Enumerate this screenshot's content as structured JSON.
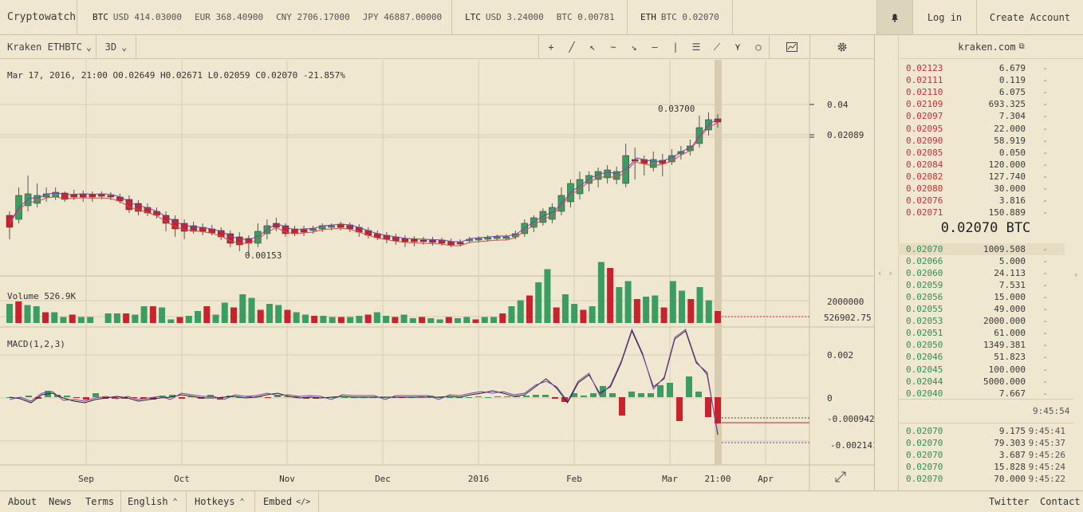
{
  "colors": {
    "bg": "#f0e7d1",
    "up": "#3a9e63",
    "down": "#c8232c",
    "grid": "#d6ccb2",
    "ma": "#d24a4a",
    "macd_signal": "#7a3fb0",
    "macd_line": "#222222"
  },
  "topbar": {
    "brand": "Cryptowatch",
    "btc_label": "BTC",
    "btc_prices": [
      "USD 414.03000",
      "EUR 368.40900",
      "CNY 2706.17000",
      "JPY 46887.00000"
    ],
    "ltc_label": "LTC",
    "ltc_prices": [
      "USD 3.24000",
      "BTC 0.00781"
    ],
    "eth_label": "ETH",
    "eth_prices": [
      "BTC 0.02070"
    ],
    "theme_icon": "bell-icon",
    "login": "Log in",
    "create_account": "Create Account"
  },
  "toolbar": {
    "market": "Kraken ETHBTC",
    "period": "3D",
    "tools": [
      "crosshair-icon",
      "line-icon",
      "arrow-icon",
      "curve-icon",
      "ray-icon",
      "hline-icon",
      "vline-icon",
      "fib-icon",
      "pitchfork-icon",
      "fan-icon",
      "circle-icon"
    ],
    "chart_icon": "chart-icon",
    "settings_icon": "gear-icon"
  },
  "info_line": {
    "date": "Mar 17, 2016, 21:00",
    "o": "O0.02649",
    "h": "H0.02671",
    "l": "L0.02059",
    "c": "C0.02070",
    "change": "-21.857%"
  },
  "annotations": {
    "high": "0.03700",
    "low": "0.00153"
  },
  "price_axis": {
    "ticks": [
      "0.04",
      "0.02089"
    ]
  },
  "volume": {
    "label": "Volume 526.9K",
    "ticks": [
      "2000000",
      "526902.75"
    ]
  },
  "macd": {
    "label": "MACD(1,2,3)",
    "ticks": [
      "0.002",
      "0",
      "-0.000942",
      "-0.002141"
    ]
  },
  "x_axis": {
    "labels": [
      "Sep",
      "Oct",
      "Nov",
      "Dec",
      "2016",
      "Feb",
      "Mar",
      "21:00",
      "Apr"
    ]
  },
  "orderbook": {
    "exchange": "kraken.com",
    "asks": [
      {
        "price": "0.02123",
        "qty": "6.679",
        "d": "-"
      },
      {
        "price": "0.02111",
        "qty": "0.119",
        "d": "-"
      },
      {
        "price": "0.02110",
        "qty": "6.075",
        "d": "-"
      },
      {
        "price": "0.02109",
        "qty": "693.325",
        "d": "-"
      },
      {
        "price": "0.02097",
        "qty": "7.304",
        "d": "-"
      },
      {
        "price": "0.02095",
        "qty": "22.000",
        "d": "-"
      },
      {
        "price": "0.02090",
        "qty": "58.919",
        "d": "-"
      },
      {
        "price": "0.02085",
        "qty": "0.050",
        "d": "-"
      },
      {
        "price": "0.02084",
        "qty": "120.000",
        "d": "-"
      },
      {
        "price": "0.02082",
        "qty": "127.740",
        "d": "-"
      },
      {
        "price": "0.02080",
        "qty": "30.000",
        "d": "-"
      },
      {
        "price": "0.02076",
        "qty": "3.816",
        "d": "-"
      },
      {
        "price": "0.02071",
        "qty": "150.889",
        "d": "-"
      }
    ],
    "last_price": "0.02070 BTC",
    "bids": [
      {
        "price": "0.02070",
        "qty": "1009.508",
        "d": "-"
      },
      {
        "price": "0.02066",
        "qty": "5.000",
        "d": "-"
      },
      {
        "price": "0.02060",
        "qty": "24.113",
        "d": "-"
      },
      {
        "price": "0.02059",
        "qty": "7.531",
        "d": "-"
      },
      {
        "price": "0.02056",
        "qty": "15.000",
        "d": "-"
      },
      {
        "price": "0.02055",
        "qty": "49.000",
        "d": "-"
      },
      {
        "price": "0.02053",
        "qty": "2000.000",
        "d": "-"
      },
      {
        "price": "0.02051",
        "qty": "61.000",
        "d": "-"
      },
      {
        "price": "0.02050",
        "qty": "1349.381",
        "d": "-"
      },
      {
        "price": "0.02046",
        "qty": "51.823",
        "d": "-"
      },
      {
        "price": "0.02045",
        "qty": "100.000",
        "d": "-"
      },
      {
        "price": "0.02044",
        "qty": "5000.000",
        "d": "-"
      },
      {
        "price": "0.02040",
        "qty": "7.667",
        "d": "-"
      }
    ],
    "clock": "9:45:54",
    "trades": [
      {
        "price": "0.02070",
        "qty": "9.175",
        "time": "9:45:41"
      },
      {
        "price": "0.02070",
        "qty": "79.303",
        "time": "9:45:37"
      },
      {
        "price": "0.02070",
        "qty": "3.687",
        "time": "9:45:26"
      },
      {
        "price": "0.02070",
        "qty": "15.828",
        "time": "9:45:24"
      },
      {
        "price": "0.02070",
        "qty": "70.000",
        "time": "9:45:22"
      }
    ]
  },
  "footer": {
    "about": "About",
    "news": "News",
    "terms": "Terms",
    "language": "English",
    "hotkeys": "Hotkeys",
    "embed": "Embed",
    "twitter": "Twitter",
    "contact": "Contact"
  }
}
